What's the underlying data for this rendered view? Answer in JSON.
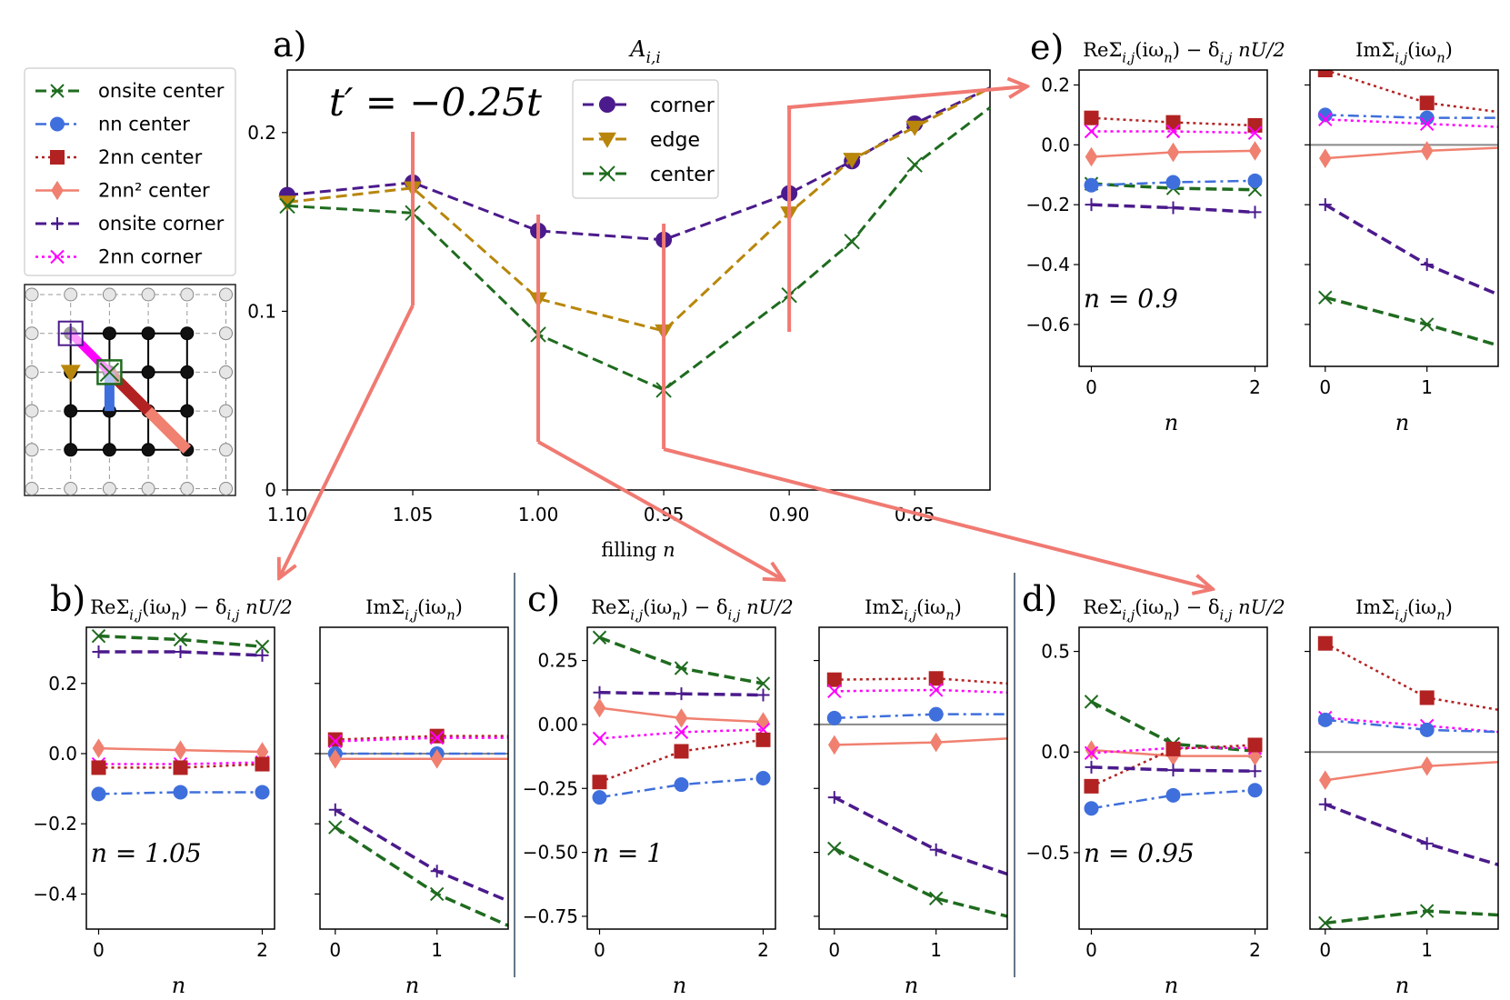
{
  "colors": {
    "onsite_center": "#1f6b1f",
    "nn_center": "#3f6fdc",
    "nn2_center": "#b22222",
    "nn2sq_center": "#f08070",
    "onsite_corner": "#4b1a8c",
    "nn2_corner": "#ff00ff",
    "corner": "#4b1a8c",
    "edge": "#b8860b",
    "center": "#1f6b1f",
    "arrow": "#f07a72",
    "zero_line": "#888888",
    "separator": "#667788"
  },
  "legend_left": [
    {
      "key": "onsite_center",
      "label": "onsite center",
      "marker": "x",
      "dash": "dash"
    },
    {
      "key": "nn_center",
      "label": "nn center",
      "marker": "o",
      "dash": "dashdot"
    },
    {
      "key": "nn2_center",
      "label": "2nn center",
      "marker": "s",
      "dash": "dot"
    },
    {
      "key": "nn2sq_center",
      "label": "2nn² center",
      "marker": "d",
      "dash": "solid"
    },
    {
      "key": "onsite_corner",
      "label": "onsite corner",
      "marker": "+",
      "dash": "dash"
    },
    {
      "key": "nn2_corner",
      "label": "2nn corner",
      "marker": "x",
      "dash": "dot"
    }
  ],
  "chart_data": [
    {
      "id": "a",
      "type": "line",
      "panel_label": "a)",
      "title": "A_{i,i}",
      "annotation": "t′ = −0.25t",
      "xlabel": "filling n",
      "x_tick_labels": [
        "1.10",
        "1.05",
        "1.00",
        "0.95",
        "0.90",
        "0.85"
      ],
      "x_ticks": [
        1.1,
        1.05,
        1.0,
        0.95,
        0.9,
        0.85
      ],
      "xlim": [
        1.1,
        0.82
      ],
      "ylim": [
        0,
        0.235
      ],
      "y_ticks": [
        0,
        0.1,
        0.2
      ],
      "y_tick_labels": [
        "0",
        "0.1",
        "0.2"
      ],
      "x": [
        1.1,
        1.05,
        1.0,
        0.95,
        0.9,
        0.875,
        0.85,
        0.82
      ],
      "series": [
        {
          "name": "corner",
          "key": "corner",
          "marker": "o",
          "values": [
            0.165,
            0.172,
            0.145,
            0.14,
            0.166,
            0.184,
            0.205,
            0.225
          ]
        },
        {
          "name": "edge",
          "key": "edge",
          "marker": "v",
          "values": [
            0.161,
            0.169,
            0.107,
            0.089,
            0.155,
            0.185,
            0.203,
            0.225
          ]
        },
        {
          "name": "center",
          "key": "center",
          "marker": "x",
          "values": [
            0.159,
            0.155,
            0.087,
            0.056,
            0.109,
            0.139,
            0.182,
            0.214
          ]
        }
      ],
      "marked_fillings": [
        1.05,
        1.0,
        0.95,
        0.9
      ]
    },
    {
      "id": "b",
      "panel_label": "b)",
      "type": "line",
      "n_label": "n = 1.05",
      "re": {
        "title": "ReΣ_{i,j}(iω_n) − δ_{i,j} nU/2",
        "ylim": [
          -0.5,
          0.36
        ],
        "y_ticks": [
          -0.4,
          -0.2,
          0.0,
          0.2
        ],
        "y_tick_labels": [
          "−0.4",
          "−0.2",
          "0.0",
          "0.2"
        ],
        "xlim": [
          -0.15,
          2.15
        ],
        "x_ticks": [
          0,
          2
        ],
        "x_tick_labels": [
          "0",
          "2"
        ],
        "xlabel": "n",
        "zero_line": false,
        "series": [
          {
            "key": "onsite_center",
            "x": [
              0,
              1,
              2
            ],
            "values": [
              0.335,
              0.325,
              0.305
            ]
          },
          {
            "key": "onsite_corner",
            "x": [
              0,
              1,
              2
            ],
            "values": [
              0.29,
              0.29,
              0.28
            ]
          },
          {
            "key": "nn2sq_center",
            "x": [
              0,
              1,
              2
            ],
            "values": [
              0.015,
              0.01,
              0.005
            ]
          },
          {
            "key": "nn2_corner",
            "x": [
              0,
              1,
              2
            ],
            "values": [
              -0.03,
              -0.03,
              -0.025
            ]
          },
          {
            "key": "nn2_center",
            "x": [
              0,
              1,
              2
            ],
            "values": [
              -0.04,
              -0.04,
              -0.03
            ]
          },
          {
            "key": "nn_center",
            "x": [
              0,
              1,
              2
            ],
            "values": [
              -0.115,
              -0.11,
              -0.11
            ]
          }
        ]
      },
      "im": {
        "title": "ImΣ_{i,j}(iω_n)",
        "ylim": [
          -0.5,
          0.36
        ],
        "y_ticks": [
          -0.4,
          -0.2,
          0.0,
          0.2
        ],
        "y_tick_labels": [],
        "xlim": [
          -0.15,
          1.7
        ],
        "x_ticks": [
          0,
          1
        ],
        "x_tick_labels": [
          "0",
          "1"
        ],
        "xlabel": "n",
        "zero_line": true,
        "series": [
          {
            "key": "nn2_center",
            "x": [
              0,
              1,
              1.7
            ],
            "values": [
              0.04,
              0.05,
              0.05
            ]
          },
          {
            "key": "nn2_corner",
            "x": [
              0,
              1,
              1.7
            ],
            "values": [
              0.035,
              0.045,
              0.045
            ]
          },
          {
            "key": "nn_center",
            "x": [
              0,
              1,
              1.7
            ],
            "values": [
              0.0,
              0.0,
              0.0
            ]
          },
          {
            "key": "nn2sq_center",
            "x": [
              0,
              1,
              1.7
            ],
            "values": [
              -0.015,
              -0.015,
              -0.015
            ]
          },
          {
            "key": "onsite_corner",
            "x": [
              0,
              1,
              1.7
            ],
            "values": [
              -0.16,
              -0.335,
              -0.42
            ]
          },
          {
            "key": "onsite_center",
            "x": [
              0,
              1,
              1.7
            ],
            "values": [
              -0.21,
              -0.4,
              -0.49
            ]
          }
        ]
      }
    },
    {
      "id": "c",
      "panel_label": "c)",
      "type": "line",
      "n_label": "n = 1",
      "re": {
        "title": "ReΣ_{i,j}(iω_n) − δ_{i,j} nU/2",
        "ylim": [
          -0.8,
          0.38
        ],
        "y_ticks": [
          -0.75,
          -0.5,
          -0.25,
          0.0,
          0.25
        ],
        "y_tick_labels": [
          "−0.75",
          "−0.50",
          "−0.25",
          "0.00",
          "0.25"
        ],
        "xlim": [
          -0.15,
          2.15
        ],
        "x_ticks": [
          0,
          2
        ],
        "x_tick_labels": [
          "0",
          "2"
        ],
        "xlabel": "n",
        "zero_line": false,
        "series": [
          {
            "key": "onsite_center",
            "x": [
              0,
              1,
              2
            ],
            "values": [
              0.34,
              0.22,
              0.16
            ]
          },
          {
            "key": "onsite_corner",
            "x": [
              0,
              1,
              2
            ],
            "values": [
              0.125,
              0.12,
              0.115
            ]
          },
          {
            "key": "nn2sq_center",
            "x": [
              0,
              1,
              2
            ],
            "values": [
              0.065,
              0.025,
              0.01
            ]
          },
          {
            "key": "nn2_corner",
            "x": [
              0,
              1,
              2
            ],
            "values": [
              -0.055,
              -0.03,
              -0.02
            ]
          },
          {
            "key": "nn2_center",
            "x": [
              0,
              1,
              2
            ],
            "values": [
              -0.225,
              -0.105,
              -0.06
            ]
          },
          {
            "key": "nn_center",
            "x": [
              0,
              1,
              2
            ],
            "values": [
              -0.285,
              -0.235,
              -0.21
            ]
          }
        ]
      },
      "im": {
        "title": "ImΣ_{i,j}(iω_n)",
        "ylim": [
          -0.8,
          0.38
        ],
        "y_ticks": [
          -0.75,
          -0.5,
          -0.25,
          0.0,
          0.25
        ],
        "y_tick_labels": [],
        "xlim": [
          -0.15,
          1.7
        ],
        "x_ticks": [
          0,
          1
        ],
        "x_tick_labels": [
          "0",
          "1"
        ],
        "xlabel": "n",
        "zero_line": true,
        "series": [
          {
            "key": "nn2_center",
            "x": [
              0,
              1,
              1.7
            ],
            "values": [
              0.175,
              0.18,
              0.16
            ]
          },
          {
            "key": "nn2_corner",
            "x": [
              0,
              1,
              1.7
            ],
            "values": [
              0.13,
              0.135,
              0.125
            ]
          },
          {
            "key": "nn_center",
            "x": [
              0,
              1,
              1.7
            ],
            "values": [
              0.025,
              0.04,
              0.04
            ]
          },
          {
            "key": "nn2sq_center",
            "x": [
              0,
              1,
              1.7
            ],
            "values": [
              -0.08,
              -0.07,
              -0.055
            ]
          },
          {
            "key": "onsite_corner",
            "x": [
              0,
              1,
              1.7
            ],
            "values": [
              -0.285,
              -0.49,
              -0.585
            ]
          },
          {
            "key": "onsite_center",
            "x": [
              0,
              1,
              1.7
            ],
            "values": [
              -0.485,
              -0.68,
              -0.75
            ]
          }
        ]
      }
    },
    {
      "id": "d",
      "panel_label": "d)",
      "type": "line",
      "n_label": "n = 0.95",
      "re": {
        "title": "ReΣ_{i,j}(iω_n) − δ_{i,j} nU/2",
        "ylim": [
          -0.88,
          0.62
        ],
        "y_ticks": [
          -0.5,
          0.0,
          0.5
        ],
        "y_tick_labels": [
          "−0.5",
          "0.0",
          "0.5"
        ],
        "xlim": [
          -0.15,
          2.15
        ],
        "x_ticks": [
          0,
          2
        ],
        "x_tick_labels": [
          "0",
          "2"
        ],
        "xlabel": "n",
        "zero_line": false,
        "series": [
          {
            "key": "onsite_center",
            "x": [
              0,
              1,
              2
            ],
            "values": [
              0.25,
              0.04,
              0.005
            ]
          },
          {
            "key": "nn2sq_center",
            "x": [
              0,
              1,
              2
            ],
            "values": [
              0.01,
              -0.02,
              -0.02
            ]
          },
          {
            "key": "nn2_corner",
            "x": [
              0,
              1,
              2
            ],
            "values": [
              -0.005,
              0.02,
              0.02
            ]
          },
          {
            "key": "nn2_center",
            "x": [
              0,
              1,
              2
            ],
            "values": [
              -0.17,
              0.015,
              0.035
            ]
          },
          {
            "key": "onsite_corner",
            "x": [
              0,
              1,
              2
            ],
            "values": [
              -0.075,
              -0.09,
              -0.095
            ]
          },
          {
            "key": "nn_center",
            "x": [
              0,
              1,
              2
            ],
            "values": [
              -0.28,
              -0.215,
              -0.19
            ]
          }
        ]
      },
      "im": {
        "title": "ImΣ_{i,j}(iω_n)",
        "ylim": [
          -0.88,
          0.62
        ],
        "y_ticks": [
          -0.5,
          0.0,
          0.5
        ],
        "y_tick_labels": [],
        "xlim": [
          -0.15,
          1.7
        ],
        "x_ticks": [
          0,
          1
        ],
        "x_tick_labels": [
          "0",
          "1"
        ],
        "xlabel": "n",
        "zero_line": true,
        "series": [
          {
            "key": "nn2_center",
            "x": [
              0,
              1,
              1.7
            ],
            "values": [
              0.54,
              0.27,
              0.21
            ]
          },
          {
            "key": "nn2_corner",
            "x": [
              0,
              1,
              1.7
            ],
            "values": [
              0.17,
              0.13,
              0.1
            ]
          },
          {
            "key": "nn_center",
            "x": [
              0,
              1,
              1.7
            ],
            "values": [
              0.16,
              0.11,
              0.1
            ]
          },
          {
            "key": "nn2sq_center",
            "x": [
              0,
              1,
              1.7
            ],
            "values": [
              -0.14,
              -0.07,
              -0.05
            ]
          },
          {
            "key": "onsite_corner",
            "x": [
              0,
              1,
              1.7
            ],
            "values": [
              -0.26,
              -0.455,
              -0.56
            ]
          },
          {
            "key": "onsite_center",
            "x": [
              0,
              1,
              1.7
            ],
            "values": [
              -0.85,
              -0.79,
              -0.81
            ]
          }
        ]
      }
    },
    {
      "id": "e",
      "panel_label": "e)",
      "type": "line",
      "n_label": "n = 0.9",
      "re": {
        "title": "ReΣ_{i,j}(iω_n) − δ_{i,j} nU/2",
        "ylim": [
          -0.74,
          0.25
        ],
        "y_ticks": [
          -0.6,
          -0.4,
          -0.2,
          0.0,
          0.2
        ],
        "y_tick_labels": [
          "−0.6",
          "−0.4",
          "−0.2",
          "0.0",
          "0.2"
        ],
        "xlim": [
          -0.15,
          2.15
        ],
        "x_ticks": [
          0,
          2
        ],
        "x_tick_labels": [
          "0",
          "2"
        ],
        "xlabel": "n",
        "zero_line": false,
        "series": [
          {
            "key": "nn2_center",
            "x": [
              0,
              1,
              2
            ],
            "values": [
              0.09,
              0.075,
              0.065
            ]
          },
          {
            "key": "nn2_corner",
            "x": [
              0,
              1,
              2
            ],
            "values": [
              0.045,
              0.045,
              0.04
            ]
          },
          {
            "key": "nn2sq_center",
            "x": [
              0,
              1,
              2
            ],
            "values": [
              -0.04,
              -0.025,
              -0.02
            ]
          },
          {
            "key": "onsite_center",
            "x": [
              0,
              1,
              2
            ],
            "values": [
              -0.13,
              -0.145,
              -0.15
            ]
          },
          {
            "key": "nn_center",
            "x": [
              0,
              1,
              2
            ],
            "values": [
              -0.135,
              -0.125,
              -0.12
            ]
          },
          {
            "key": "onsite_corner",
            "x": [
              0,
              1,
              2
            ],
            "values": [
              -0.2,
              -0.21,
              -0.225
            ]
          }
        ]
      },
      "im": {
        "title": "ImΣ_{i,j}(iω_n)",
        "ylim": [
          -0.74,
          0.25
        ],
        "y_ticks": [
          -0.6,
          -0.4,
          -0.2,
          0.0,
          0.2
        ],
        "y_tick_labels": [],
        "xlim": [
          -0.15,
          1.7
        ],
        "x_ticks": [
          0,
          1
        ],
        "x_tick_labels": [
          "0",
          "1"
        ],
        "xlabel": "n",
        "zero_line": true,
        "series": [
          {
            "key": "nn2_center",
            "x": [
              0,
              1,
              1.7
            ],
            "values": [
              0.25,
              0.14,
              0.11
            ]
          },
          {
            "key": "nn_center",
            "x": [
              0,
              1,
              1.7
            ],
            "values": [
              0.1,
              0.09,
              0.09
            ]
          },
          {
            "key": "nn2_corner",
            "x": [
              0,
              1,
              1.7
            ],
            "values": [
              0.085,
              0.07,
              0.06
            ]
          },
          {
            "key": "nn2sq_center",
            "x": [
              0,
              1,
              1.7
            ],
            "values": [
              -0.045,
              -0.02,
              -0.01
            ]
          },
          {
            "key": "onsite_corner",
            "x": [
              0,
              1,
              1.7
            ],
            "values": [
              -0.2,
              -0.4,
              -0.5
            ]
          },
          {
            "key": "onsite_center",
            "x": [
              0,
              1,
              1.7
            ],
            "values": [
              -0.51,
              -0.6,
              -0.67
            ]
          }
        ]
      }
    }
  ]
}
